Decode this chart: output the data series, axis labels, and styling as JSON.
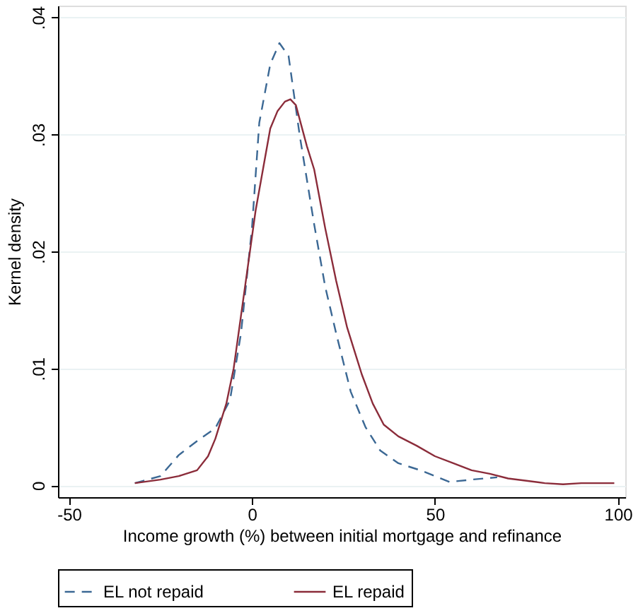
{
  "chart_data": {
    "type": "line",
    "xlabel": "Income growth (%) between initial mortgage and refinance",
    "ylabel": "Kernel density",
    "xlim": [
      -53,
      102
    ],
    "xticks": [
      -50,
      0,
      50,
      100
    ],
    "ylim": [
      -0.001,
      0.041
    ],
    "yticks": [
      0,
      {
        "value": 0.01,
        "label": ".01"
      },
      {
        "value": 0.02,
        "label": ".02"
      },
      {
        "value": 0.03,
        "label": ".03"
      },
      {
        "value": 0.04,
        "label": ".04"
      }
    ],
    "grid": "y",
    "legend": "bottom",
    "marker": "none",
    "series": [
      {
        "name": "EL not repaid",
        "color": "#3b6894",
        "line_style": "dashed",
        "x": [
          -32,
          -25,
          -20,
          -15,
          -10,
          -6,
          -3,
          0,
          2,
          5,
          7.5,
          10,
          13,
          17,
          20,
          23,
          27,
          31,
          35,
          40,
          46,
          50,
          54,
          60,
          67
        ],
        "values": [
          0.0002,
          0.0008,
          0.0026,
          0.0038,
          0.0049,
          0.0073,
          0.013,
          0.022,
          0.031,
          0.036,
          0.0378,
          0.0367,
          0.03,
          0.0223,
          0.017,
          0.013,
          0.008,
          0.005,
          0.003,
          0.0019,
          0.0013,
          0.0008,
          0.0003,
          0.0005,
          0.0007
        ]
      },
      {
        "name": "EL repaid",
        "color": "#8b2c3a",
        "line_style": "solid",
        "x": [
          -32,
          -25,
          -20,
          -15,
          -12,
          -10,
          -7,
          -5,
          -3,
          -1,
          1,
          3,
          5,
          7,
          9,
          10.5,
          12,
          15,
          17,
          20,
          23,
          26,
          30,
          33,
          36,
          40,
          45,
          50,
          55,
          60,
          65,
          70,
          75,
          80,
          85,
          90,
          95,
          99
        ],
        "values": [
          0.0002,
          0.0005,
          0.0008,
          0.0013,
          0.0025,
          0.004,
          0.007,
          0.01,
          0.0145,
          0.019,
          0.0235,
          0.027,
          0.0305,
          0.032,
          0.0328,
          0.033,
          0.0325,
          0.029,
          0.027,
          0.022,
          0.0175,
          0.0135,
          0.0095,
          0.007,
          0.0052,
          0.0042,
          0.0034,
          0.0025,
          0.0019,
          0.0013,
          0.001,
          0.0006,
          0.0004,
          0.0002,
          0.0001,
          0.0002,
          0.0002,
          0.0002
        ]
      }
    ]
  }
}
